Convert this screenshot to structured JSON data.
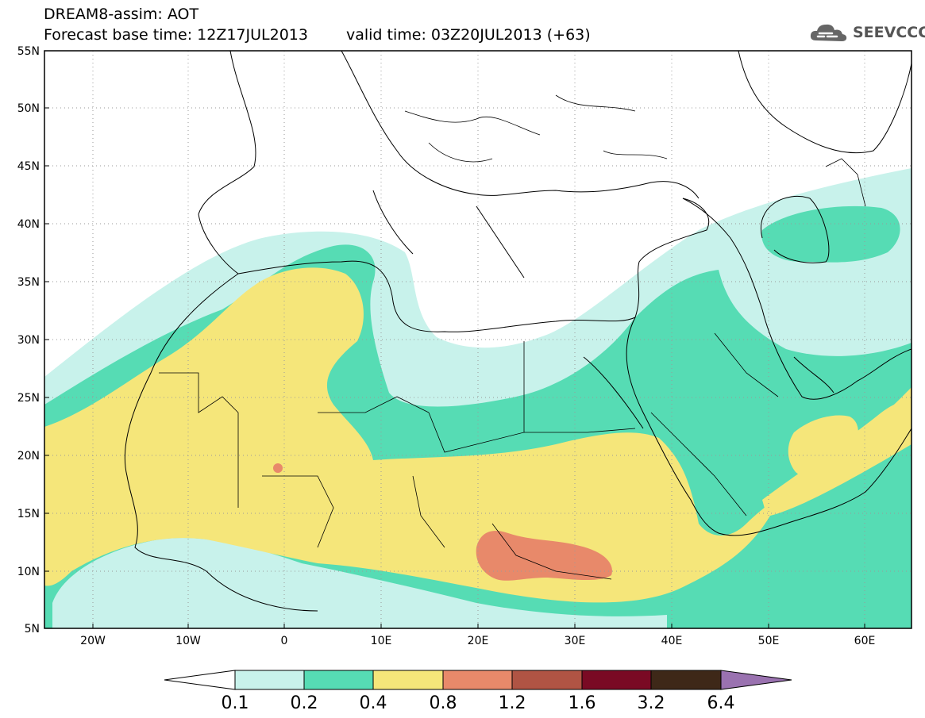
{
  "header": {
    "title": "DREAM8-assim: AOT",
    "base_time": "Forecast base time: 12Z17JUL2013",
    "valid_time": "valid time: 03Z20JUL2013 (+63)"
  },
  "logo": {
    "text": "SEEVCCC",
    "icon": "cloud-logo-icon"
  },
  "map_data": {
    "type": "filled-contour-map",
    "variable": "AOT",
    "lon_range": [
      -25,
      65
    ],
    "lat_range": [
      5,
      55
    ],
    "lat_ticks": [
      "55N",
      "50N",
      "45N",
      "40N",
      "35N",
      "30N",
      "25N",
      "20N",
      "15N",
      "10N",
      "5N"
    ],
    "lon_ticks": [
      "20W",
      "10W",
      "0",
      "10E",
      "20E",
      "30E",
      "40E",
      "50E",
      "60E"
    ],
    "grid": "dotted"
  },
  "legend": {
    "labels": [
      "0.1",
      "0.2",
      "0.4",
      "0.8",
      "1.2",
      "1.6",
      "3.2",
      "6.4"
    ],
    "colors": [
      "#c8f2eb",
      "#56dcb4",
      "#f5e67a",
      "#e8896a",
      "#b05444",
      "#7a0a24",
      "#3e2818",
      "#9a72b0"
    ]
  }
}
